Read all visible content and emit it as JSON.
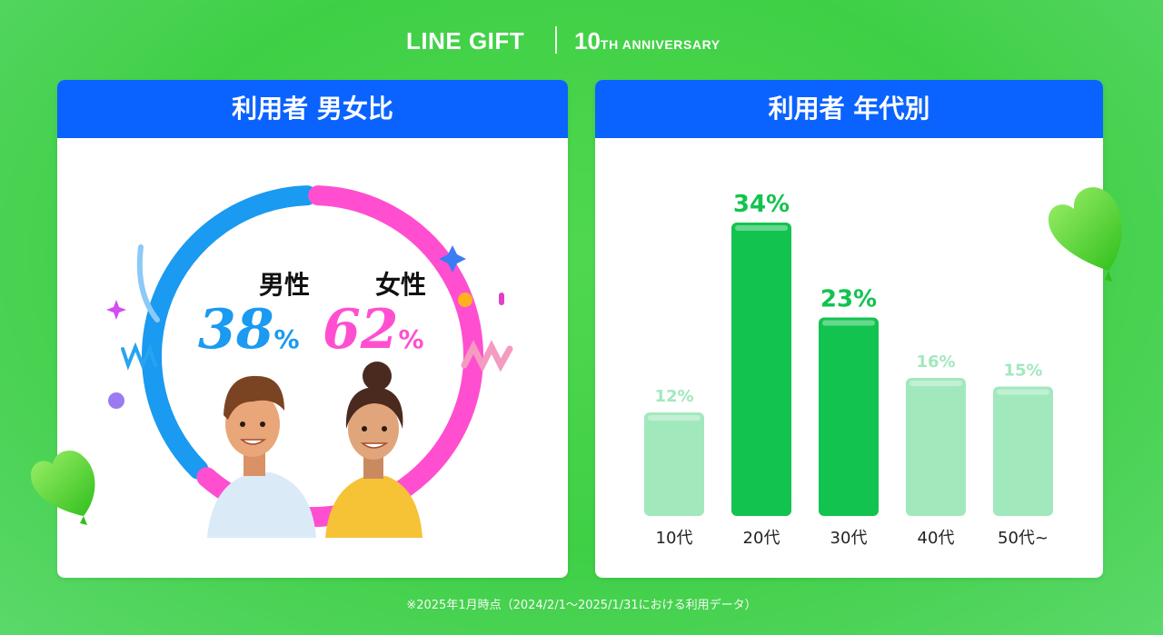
{
  "header": {
    "brand": "LINE GIFT",
    "anniversary_num": "10",
    "anniversary_rest": "TH ANNIVERSARY"
  },
  "gender_card": {
    "title": "利用者 男女比",
    "male_label": "男性",
    "female_label": "女性",
    "male_value": "38",
    "female_value": "62",
    "percent_sign": "%"
  },
  "age_card": {
    "title": "利用者 年代別"
  },
  "footnote": "※2025年1月時点（2024/2/1～2025/1/31における利用データ）",
  "colors": {
    "male": "#1a9af0",
    "female": "#ff4fd0",
    "bar_highlight": "#13c34f",
    "bar_muted": "#a2e8bd",
    "header_blue": "#0a63ff"
  },
  "chart_data": [
    {
      "type": "pie",
      "categories": [
        "男性",
        "女性"
      ],
      "values": [
        38,
        62
      ],
      "title": "利用者 男女比"
    },
    {
      "type": "bar",
      "categories": [
        "10代",
        "20代",
        "30代",
        "40代",
        "50代~"
      ],
      "values": [
        12,
        34,
        23,
        16,
        15
      ],
      "value_labels": [
        "12%",
        "34%",
        "23%",
        "16%",
        "15%"
      ],
      "highlight": [
        false,
        true,
        true,
        false,
        false
      ],
      "title": "利用者 年代別",
      "ylim": [
        0,
        40
      ]
    }
  ]
}
